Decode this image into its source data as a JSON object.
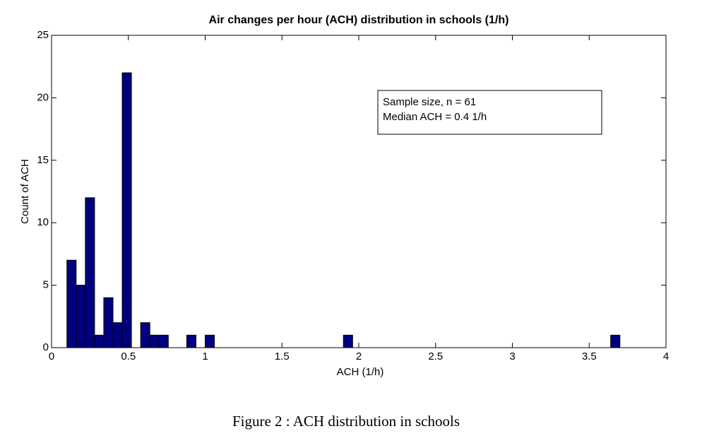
{
  "chart_data": {
    "type": "histogram",
    "title": "Air changes per hour (ACH) distribution in schools (1/h)",
    "x_label": "ACH (1/h)",
    "y_label": "Count of ACH",
    "annotations": [
      "Sample size, n = 61",
      "Median ACH = 0.4 1/h"
    ],
    "caption": "Figure 2 : ACH distribution in schools",
    "color": "#00007f",
    "bins": [
      0.1,
      0.16,
      0.22,
      0.28,
      0.34,
      0.4,
      0.46,
      0.52,
      0.58,
      0.64,
      0.7,
      0.76,
      0.82,
      0.88,
      0.94,
      1.0,
      1.06,
      1.12,
      1.18,
      1.24,
      1.3,
      1.36,
      1.42,
      1.48,
      1.54,
      1.6,
      1.66,
      1.72,
      1.78,
      1.84,
      1.9,
      1.96,
      2.02,
      2.08,
      2.14,
      2.2,
      2.26,
      2.32,
      2.38,
      2.44,
      2.5,
      2.56,
      2.62,
      2.68,
      2.74,
      2.8,
      2.86,
      2.92,
      2.98,
      3.04,
      3.1,
      3.16,
      3.22,
      3.28,
      3.34,
      3.4,
      3.46,
      3.52,
      3.58,
      3.64,
      3.7
    ],
    "values": [
      7,
      5,
      12,
      1,
      4,
      2,
      22,
      0,
      2,
      1,
      1,
      0,
      0,
      1,
      0,
      1,
      0,
      0,
      0,
      0,
      0,
      0,
      0,
      0,
      0,
      0,
      0,
      0,
      0,
      0,
      1,
      0,
      0,
      0,
      0,
      0,
      0,
      0,
      0,
      0,
      0,
      0,
      0,
      0,
      0,
      0,
      0,
      0,
      0,
      0,
      0,
      0,
      0,
      0,
      0,
      0,
      0,
      0,
      0,
      1
    ],
    "xlim": [
      0,
      4
    ],
    "xticks": [
      0,
      0.5,
      1,
      1.5,
      2,
      2.5,
      3,
      3.5,
      4
    ],
    "ylim": [
      0,
      25
    ],
    "yticks": [
      0,
      5,
      10,
      15,
      20,
      25
    ]
  }
}
